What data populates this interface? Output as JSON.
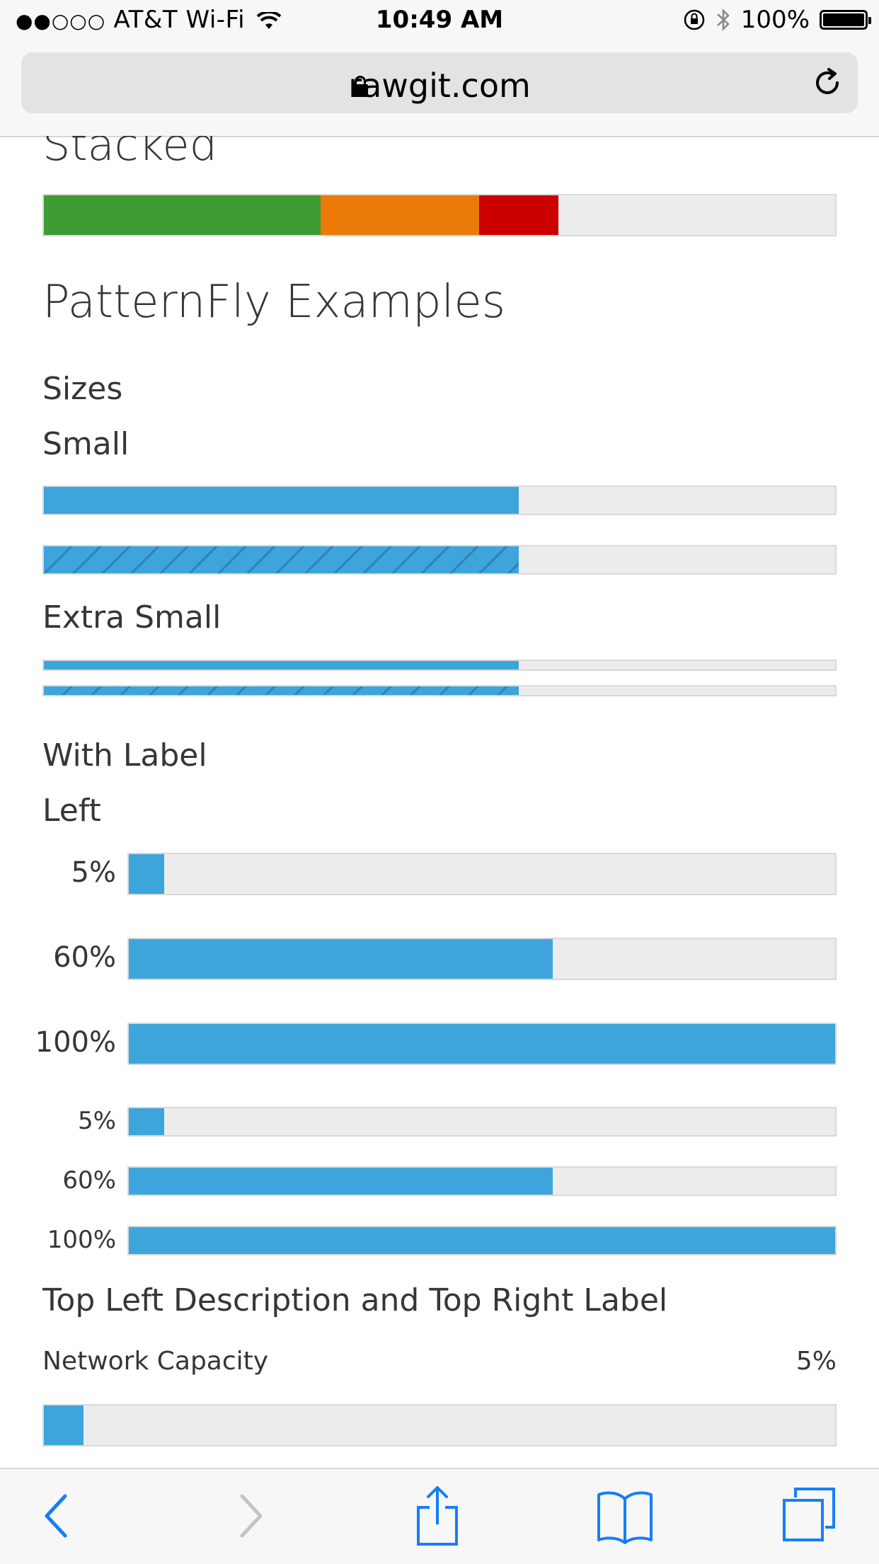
{
  "status_bar": {
    "signal_dots": "●●○○○",
    "carrier": "AT&T Wi-Fi",
    "time": "10:49 AM",
    "battery_percent": "100%",
    "battery_level": 1.0
  },
  "browser": {
    "domain": "rawgit.com"
  },
  "stacked": {
    "heading": "Stacked",
    "segments": [
      {
        "value": 35,
        "color": "#3f9c35"
      },
      {
        "value": 20,
        "color": "#ec7a08"
      },
      {
        "value": 10,
        "color": "#cc0000"
      }
    ]
  },
  "patternfly": {
    "title": "PatternFly Examples",
    "sizes": {
      "heading": "Sizes",
      "small": {
        "label": "Small",
        "value": 60
      },
      "extra_small": {
        "label": "Extra Small",
        "value": 60
      }
    },
    "with_label": {
      "heading": "With Label",
      "left_heading": "Left",
      "bars": [
        {
          "label": "5%",
          "value": 5
        },
        {
          "label": "60%",
          "value": 60
        },
        {
          "label": "100%",
          "value": 100
        },
        {
          "label": "5%",
          "value": 5
        },
        {
          "label": "60%",
          "value": 60
        },
        {
          "label": "100%",
          "value": 100
        }
      ]
    },
    "top_left": {
      "heading": "Top Left Description and Top Right Label",
      "description": "Network Capacity",
      "label": "5%",
      "value": 5
    }
  },
  "colors": {
    "progress_blue": "#3da5dc",
    "track": "#ececec",
    "ios_blue": "#157efb"
  },
  "toolbar": {
    "icons": [
      "back-icon",
      "forward-icon",
      "share-icon",
      "bookmarks-icon",
      "tabs-icon"
    ]
  }
}
